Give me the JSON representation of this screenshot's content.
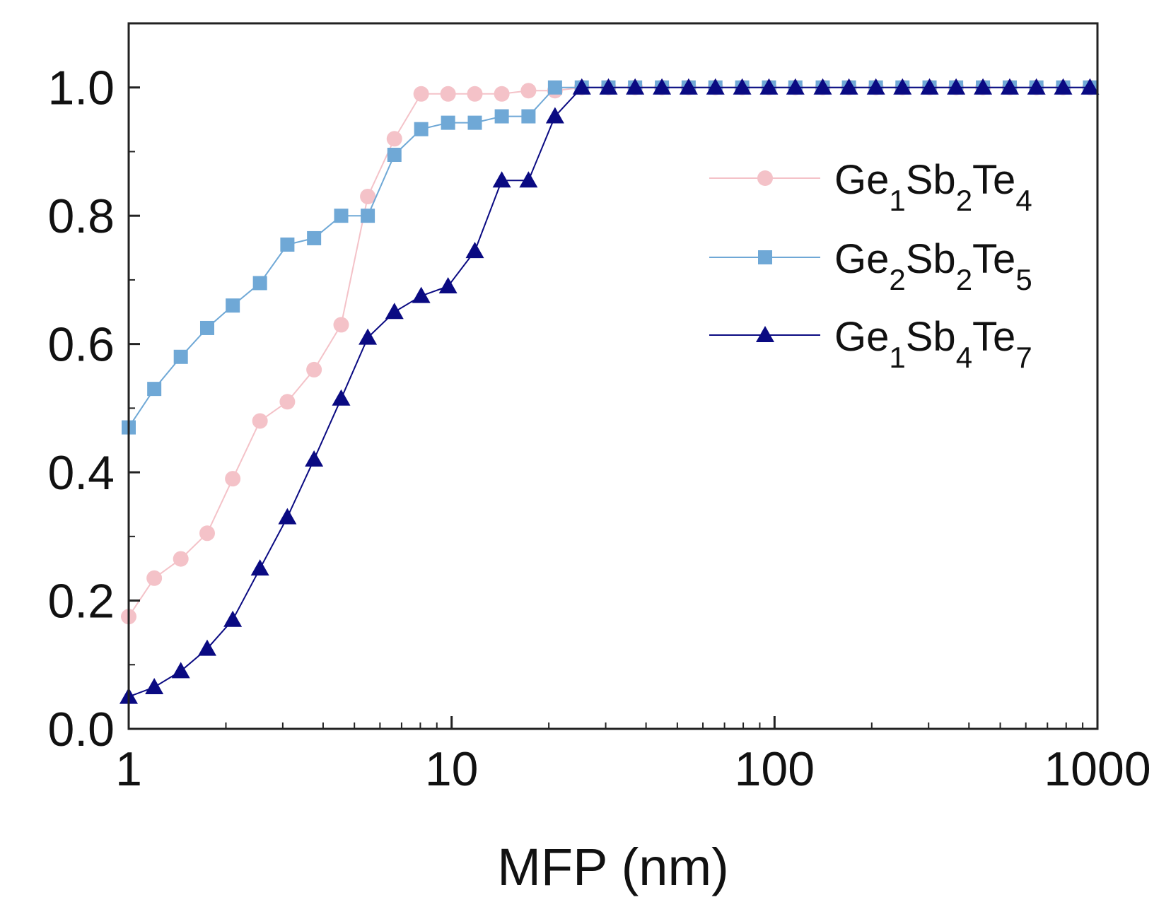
{
  "chart_data": {
    "type": "line",
    "title": "",
    "xlabel": "MFP (nm)",
    "ylabel": "",
    "xscale": "log",
    "xlim": [
      1,
      1000
    ],
    "ylim": [
      0,
      1.1
    ],
    "grid": false,
    "legend_position": "top-right",
    "xticks": [
      {
        "value": 1,
        "label": "1"
      },
      {
        "value": 10,
        "label": "10"
      },
      {
        "value": 100,
        "label": "100"
      },
      {
        "value": 1000,
        "label": "1000"
      }
    ],
    "yticks": [
      {
        "value": 0.0,
        "label": "0.0"
      },
      {
        "value": 0.2,
        "label": "0.2"
      },
      {
        "value": 0.4,
        "label": "0.4"
      },
      {
        "value": 0.6,
        "label": "0.6"
      },
      {
        "value": 0.8,
        "label": "0.8"
      },
      {
        "value": 1.0,
        "label": "1.0"
      }
    ],
    "x": [
      1.0,
      1.2,
      1.45,
      1.75,
      2.1,
      2.55,
      3.1,
      3.75,
      4.55,
      5.5,
      6.65,
      8.05,
      9.75,
      11.8,
      14.3,
      17.3,
      20.9,
      25.3,
      30.6,
      37.0,
      44.8,
      54.2,
      65.6,
      79.4,
      96.1,
      116,
      141,
      170,
      206,
      249,
      302,
      365,
      442,
      535,
      647,
      783,
      948
    ],
    "series": [
      {
        "name": "Ge1Sb2Te4",
        "name_parts": [
          [
            "Ge",
            ""
          ],
          [
            "1",
            "sub"
          ],
          [
            "Sb",
            ""
          ],
          [
            "2",
            "sub"
          ],
          [
            "Te",
            ""
          ],
          [
            "4",
            "sub"
          ]
        ],
        "marker": "circle",
        "color": "#f4c2c8",
        "values": [
          0.175,
          0.235,
          0.265,
          0.305,
          0.39,
          0.48,
          0.51,
          0.56,
          0.63,
          0.83,
          0.92,
          0.99,
          0.99,
          0.99,
          0.99,
          0.995,
          0.995,
          1.0,
          1.0,
          1.0,
          1.0,
          1.0,
          1.0,
          1.0,
          1.0,
          1.0,
          1.0,
          1.0,
          1.0,
          1.0,
          1.0,
          1.0,
          1.0,
          1.0,
          1.0,
          1.0,
          1.0
        ]
      },
      {
        "name": "Ge2Sb2Te5",
        "name_parts": [
          [
            "Ge",
            ""
          ],
          [
            "2",
            "sub"
          ],
          [
            "Sb",
            ""
          ],
          [
            "2",
            "sub"
          ],
          [
            "Te",
            ""
          ],
          [
            "5",
            "sub"
          ]
        ],
        "marker": "square",
        "color": "#6fa8d6",
        "values": [
          0.47,
          0.53,
          0.58,
          0.625,
          0.66,
          0.695,
          0.755,
          0.765,
          0.8,
          0.8,
          0.895,
          0.935,
          0.945,
          0.945,
          0.955,
          0.955,
          1.0,
          1.0,
          1.0,
          1.0,
          1.0,
          1.0,
          1.0,
          1.0,
          1.0,
          1.0,
          1.0,
          1.0,
          1.0,
          1.0,
          1.0,
          1.0,
          1.0,
          1.0,
          1.0,
          1.0,
          1.0
        ]
      },
      {
        "name": "Ge1Sb4Te7",
        "name_parts": [
          [
            "Ge",
            ""
          ],
          [
            "1",
            "sub"
          ],
          [
            "Sb",
            ""
          ],
          [
            "4",
            "sub"
          ],
          [
            "Te",
            ""
          ],
          [
            "7",
            "sub"
          ]
        ],
        "marker": "triangle",
        "color": "#0a0a82",
        "values": [
          0.05,
          0.065,
          0.09,
          0.125,
          0.17,
          0.25,
          0.33,
          0.42,
          0.515,
          0.61,
          0.65,
          0.675,
          0.69,
          0.745,
          0.855,
          0.855,
          0.955,
          1.0,
          1.0,
          1.0,
          1.0,
          1.0,
          1.0,
          1.0,
          1.0,
          1.0,
          1.0,
          1.0,
          1.0,
          1.0,
          1.0,
          1.0,
          1.0,
          1.0,
          1.0,
          1.0,
          1.0
        ]
      }
    ]
  }
}
